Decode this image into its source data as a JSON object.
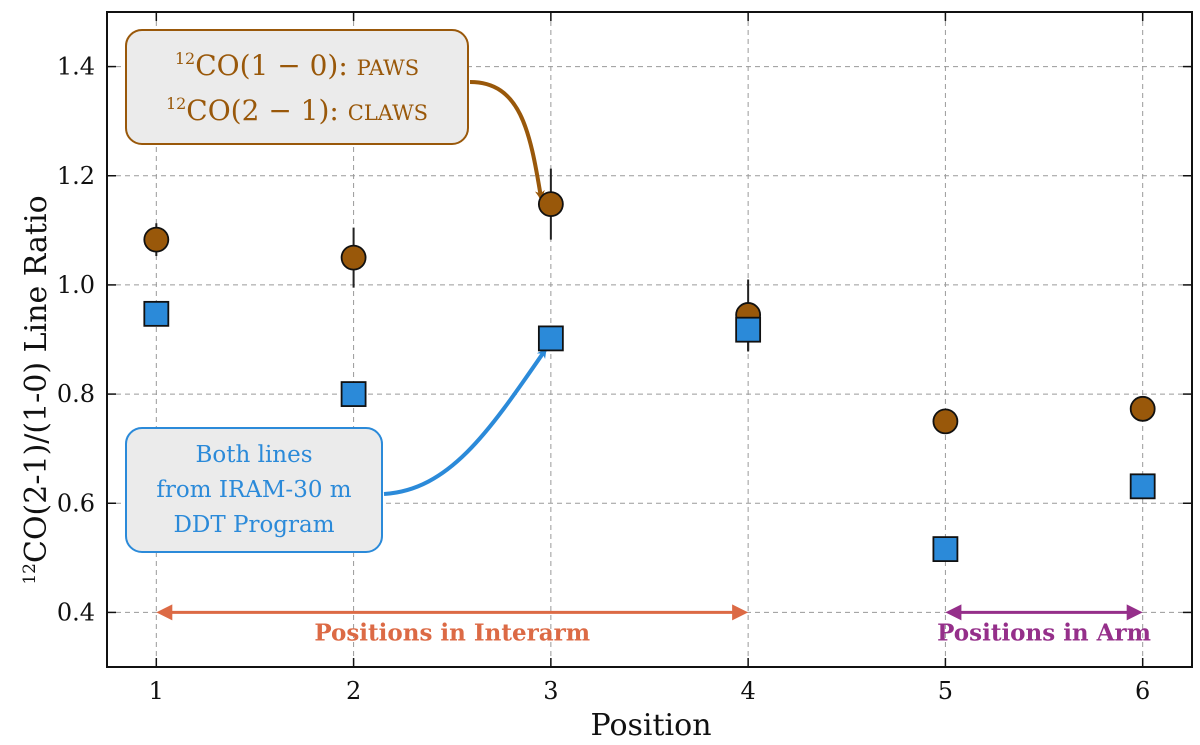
{
  "colors": {
    "paws": "#99580a",
    "ddt": "#2b8ad9",
    "interarm": "#dc6a45",
    "arm": "#952f8a",
    "box_fill": "#ebebeb"
  },
  "chart_data": {
    "type": "scatter",
    "title": "",
    "xlabel": "Position",
    "ylabel": "12CO(2-1)/(1-0) Line Ratio",
    "ylabel_sup": "12",
    "ylabel_rest": "CO(2-1)/(1-0) Line Ratio",
    "xlim": [
      0.75,
      6.25
    ],
    "ylim": [
      0.3,
      1.5
    ],
    "xticks": [
      1,
      2,
      3,
      4,
      5,
      6
    ],
    "yticks": [
      0.4,
      0.6,
      0.8,
      1.0,
      1.2,
      1.4
    ],
    "ytick_labels": [
      "0.4",
      "0.6",
      "0.8",
      "1.0",
      "1.2",
      "1.4"
    ],
    "grid": true,
    "series": [
      {
        "name": "12CO(1-0): PAWS / 12CO(2-1): CLAWS",
        "marker": "circle",
        "x": [
          1,
          2,
          3,
          4,
          5,
          6
        ],
        "y": [
          1.083,
          1.05,
          1.148,
          0.945,
          0.75,
          0.773
        ],
        "err": [
          0.03,
          0.055,
          0.065,
          0.065,
          0.0,
          0.0
        ]
      },
      {
        "name": "Both lines from IRAM-30 m DDT Program",
        "marker": "square",
        "x": [
          1,
          2,
          3,
          4,
          5,
          6
        ],
        "y": [
          0.947,
          0.8,
          0.902,
          0.918,
          0.516,
          0.631
        ],
        "err": [
          0.0,
          0.0,
          0.0,
          0.04,
          0.0,
          0.0
        ]
      }
    ],
    "annotations": {
      "paws_box": {
        "line1": "CO(1 − 0): PAWS",
        "line1_sup": "12",
        "line2": "CO(2 − 1): CLAWS",
        "line2_sup": "12",
        "line1_main": "CO(1 − 0): ",
        "line1_sc": "PAWS",
        "line2_main": "CO(2 − 1): ",
        "line2_sc": "CLAWS",
        "arrow_to": [
          2.95,
          1.16
        ]
      },
      "ddt_box": {
        "lines": [
          "Both lines",
          "from IRAM-30 m",
          "DDT Program"
        ],
        "arrow_to": [
          2.97,
          0.88
        ]
      }
    },
    "ranges": [
      {
        "label": "Positions in Interarm",
        "from": 1,
        "to": 4,
        "y": 0.4,
        "color_key": "interarm"
      },
      {
        "label": "Positions in Arm",
        "from": 5,
        "to": 6,
        "y": 0.4,
        "color_key": "arm"
      }
    ]
  }
}
